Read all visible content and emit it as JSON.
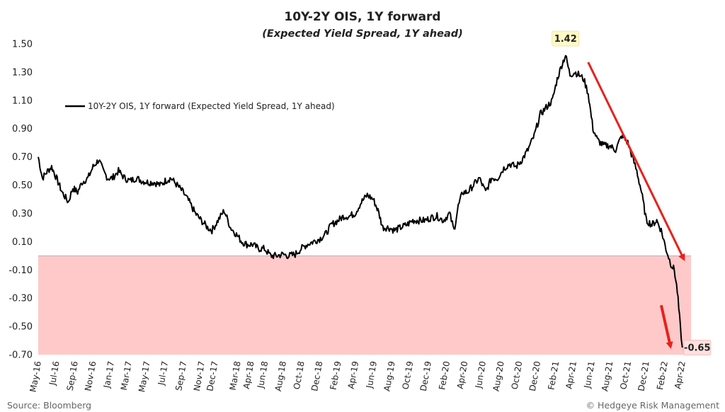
{
  "chart_data": {
    "type": "line",
    "title": "10Y-2Y OIS, 1Y forward",
    "subtitle": "(Expected Yield Spread, 1Y ahead)",
    "ylim": [
      -0.7,
      1.5
    ],
    "yticks": [
      "1.50",
      "1.30",
      "1.10",
      "0.90",
      "0.70",
      "0.50",
      "0.30",
      "0.10",
      "-0.10",
      "-0.30",
      "-0.50",
      "-0.70"
    ],
    "ytick_values": [
      1.5,
      1.3,
      1.1,
      0.9,
      0.7,
      0.5,
      0.3,
      0.1,
      -0.1,
      -0.3,
      -0.5,
      -0.7
    ],
    "xlim": [
      "2016-05-01",
      "2022-04-30"
    ],
    "xticks": [
      "May-16",
      "Jul-16",
      "Sep-16",
      "Nov-16",
      "Jan-17",
      "Mar-17",
      "May-17",
      "Jul-17",
      "Sep-17",
      "Nov-17",
      "Dec-17",
      "Mar-18",
      "Apr-18",
      "Jun-18",
      "Aug-18",
      "Oct-18",
      "Dec-18",
      "Feb-19",
      "Apr-19",
      "Jun-19",
      "Aug-19",
      "Oct-19",
      "Dec-19",
      "Feb-20",
      "Apr-20",
      "Jun-20",
      "Aug-20",
      "Oct-20",
      "Dec-20",
      "Feb-21",
      "Apr-21",
      "Jun-21",
      "Aug-21",
      "Oct-21",
      "Dec-21",
      "Feb-22",
      "Apr-22"
    ],
    "xtick_dates": [
      "2016-05-01",
      "2016-07-01",
      "2016-09-01",
      "2016-11-01",
      "2017-01-01",
      "2017-03-01",
      "2017-05-01",
      "2017-07-01",
      "2017-09-01",
      "2017-11-01",
      "2017-12-15",
      "2018-03-01",
      "2018-04-15",
      "2018-06-01",
      "2018-08-01",
      "2018-10-01",
      "2018-12-01",
      "2019-02-01",
      "2019-04-01",
      "2019-06-01",
      "2019-08-01",
      "2019-10-01",
      "2019-12-01",
      "2020-02-01",
      "2020-04-01",
      "2020-06-01",
      "2020-08-01",
      "2020-10-01",
      "2020-12-01",
      "2021-02-01",
      "2021-04-01",
      "2021-06-01",
      "2021-08-01",
      "2021-10-01",
      "2021-12-01",
      "2022-02-01",
      "2022-04-01"
    ],
    "series": [
      {
        "name": "10Y-2Y OIS, 1Y forward (Expected Yield Spread, 1Y ahead)",
        "color": "#000000",
        "x": [
          "2016-05-01",
          "2016-05-15",
          "2016-06-01",
          "2016-06-15",
          "2016-07-01",
          "2016-07-20",
          "2016-08-10",
          "2016-08-25",
          "2016-09-10",
          "2016-09-25",
          "2016-10-15",
          "2016-11-01",
          "2016-11-20",
          "2016-12-05",
          "2016-12-20",
          "2017-01-05",
          "2017-01-25",
          "2017-02-15",
          "2017-03-05",
          "2017-03-25",
          "2017-04-15",
          "2017-05-05",
          "2017-05-25",
          "2017-06-15",
          "2017-07-01",
          "2017-07-20",
          "2017-08-10",
          "2017-08-30",
          "2017-09-20",
          "2017-10-10",
          "2017-10-30",
          "2017-11-20",
          "2017-12-05",
          "2017-12-25",
          "2018-01-15",
          "2018-02-05",
          "2018-02-25",
          "2018-03-15",
          "2018-04-01",
          "2018-04-20",
          "2018-05-10",
          "2018-05-30",
          "2018-06-20",
          "2018-07-10",
          "2018-07-30",
          "2018-08-20",
          "2018-09-10",
          "2018-09-30",
          "2018-10-20",
          "2018-11-10",
          "2018-12-01",
          "2018-12-20",
          "2019-01-10",
          "2019-02-01",
          "2019-02-20",
          "2019-03-10",
          "2019-03-30",
          "2019-04-20",
          "2019-05-10",
          "2019-05-30",
          "2019-06-15",
          "2019-07-01",
          "2019-07-20",
          "2019-08-10",
          "2019-08-30",
          "2019-09-20",
          "2019-10-10",
          "2019-10-30",
          "2019-11-20",
          "2019-12-10",
          "2019-12-30",
          "2020-01-20",
          "2020-02-10",
          "2020-02-25",
          "2020-03-10",
          "2020-03-25",
          "2020-04-10",
          "2020-04-30",
          "2020-05-20",
          "2020-06-10",
          "2020-06-30",
          "2020-07-20",
          "2020-08-10",
          "2020-08-30",
          "2020-09-20",
          "2020-10-10",
          "2020-10-30",
          "2020-11-20",
          "2020-12-10",
          "2020-12-30",
          "2021-01-20",
          "2021-02-05",
          "2021-02-20",
          "2021-03-05",
          "2021-03-20",
          "2021-04-05",
          "2021-04-20",
          "2021-05-05",
          "2021-05-20",
          "2021-06-05",
          "2021-06-20",
          "2021-07-10",
          "2021-07-30",
          "2021-08-20",
          "2021-09-10",
          "2021-09-30",
          "2021-10-15",
          "2021-10-30",
          "2021-11-15",
          "2021-12-01",
          "2021-12-20",
          "2022-01-05",
          "2022-01-20",
          "2022-02-05",
          "2022-02-20",
          "2022-03-05",
          "2022-03-15",
          "2022-03-25",
          "2022-04-01"
        ],
        "y": [
          0.7,
          0.55,
          0.6,
          0.63,
          0.55,
          0.45,
          0.38,
          0.48,
          0.45,
          0.52,
          0.55,
          0.63,
          0.68,
          0.6,
          0.55,
          0.55,
          0.6,
          0.55,
          0.53,
          0.55,
          0.53,
          0.52,
          0.52,
          0.5,
          0.53,
          0.55,
          0.5,
          0.45,
          0.38,
          0.3,
          0.25,
          0.2,
          0.18,
          0.25,
          0.32,
          0.2,
          0.15,
          0.1,
          0.08,
          0.08,
          0.05,
          0.05,
          0.0,
          0.0,
          0.01,
          0.0,
          0.01,
          0.05,
          0.08,
          0.1,
          0.12,
          0.15,
          0.22,
          0.25,
          0.28,
          0.28,
          0.3,
          0.38,
          0.43,
          0.4,
          0.32,
          0.2,
          0.2,
          0.18,
          0.2,
          0.22,
          0.25,
          0.25,
          0.25,
          0.27,
          0.28,
          0.25,
          0.3,
          0.18,
          0.35,
          0.45,
          0.45,
          0.5,
          0.55,
          0.45,
          0.55,
          0.55,
          0.62,
          0.65,
          0.63,
          0.68,
          0.75,
          0.85,
          1.0,
          1.05,
          1.1,
          1.25,
          1.35,
          1.42,
          1.28,
          1.3,
          1.28,
          1.25,
          1.15,
          0.9,
          0.82,
          0.78,
          0.78,
          0.75,
          0.85,
          0.8,
          0.7,
          0.6,
          0.45,
          0.25,
          0.22,
          0.25,
          0.18,
          0.05,
          -0.05,
          -0.1,
          -0.25,
          -0.5,
          -0.65
        ]
      }
    ],
    "annotations": [
      {
        "text": "1.42",
        "x": "2021-03-05",
        "y": 1.42
      },
      {
        "text": "-0.65",
        "x": "2022-04-01",
        "y": -0.65
      }
    ],
    "shaded_region": {
      "ymin": -0.7,
      "ymax": 0.0,
      "color": "#ffc9c9"
    },
    "arrow_color": "#e8211c",
    "grid": false,
    "legend_position": "top-left"
  },
  "footer": {
    "source": "Source: Bloomberg",
    "credit": "© Hedgeye Risk Management"
  }
}
